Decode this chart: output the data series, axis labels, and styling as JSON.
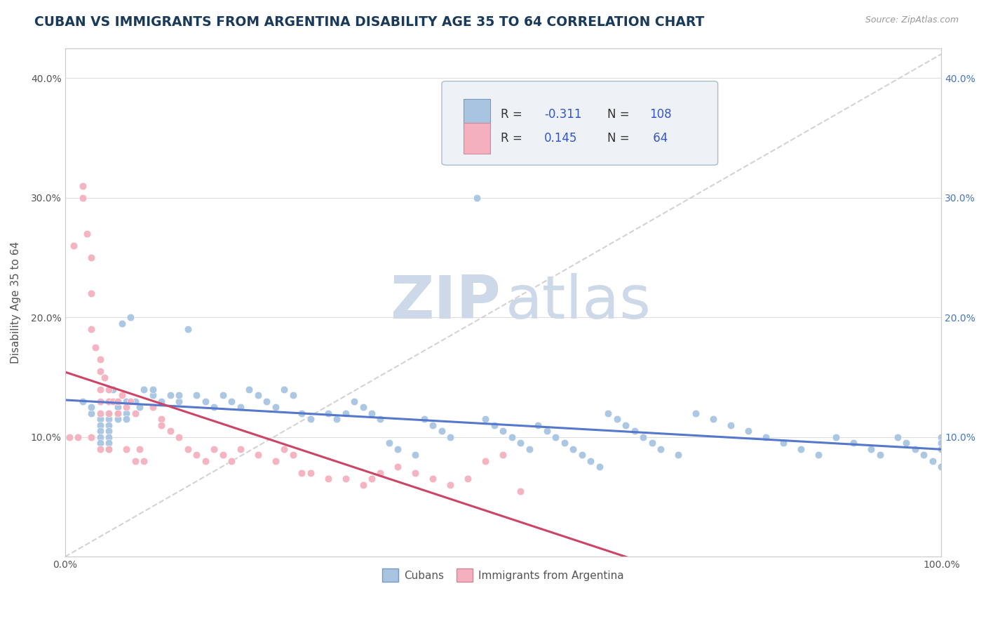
{
  "title": "CUBAN VS IMMIGRANTS FROM ARGENTINA DISABILITY AGE 35 TO 64 CORRELATION CHART",
  "source_text": "Source: ZipAtlas.com",
  "ylabel": "Disability Age 35 to 64",
  "xmin": 0.0,
  "xmax": 1.0,
  "ymin": 0.0,
  "ymax": 0.425,
  "cubans_R": -0.311,
  "cubans_N": 108,
  "argentina_R": 0.145,
  "argentina_N": 64,
  "cubans_dot_color": "#a8c4e0",
  "argentina_dot_color": "#f4b0be",
  "cubans_line_color": "#5577cc",
  "argentina_line_color": "#cc4466",
  "grid_color": "#dddddd",
  "diag_line_color": "#cccccc",
  "watermark_zip_color": "#cdd9e8",
  "watermark_atlas_color": "#cdd9e8",
  "title_color": "#1a3a5c",
  "title_fontsize": 13.5,
  "label_fontsize": 11,
  "tick_fontsize": 10,
  "legend_fontsize": 12,
  "r_n_color": "#3355cc",
  "label_color": "#555555",
  "right_tick_color": "#4477bb",
  "legend_bg": "#eef2f7",
  "legend_edge": "#aabbcc",
  "cubans_legend_patch": "#a8c4e0",
  "argentina_legend_patch": "#f4b0be",
  "cubans_patch_edge": "#7799bb",
  "argentina_patch_edge": "#cc8899",
  "ytick_vals": [
    0.1,
    0.2,
    0.3,
    0.4
  ],
  "ytick_labels": [
    "10.0%",
    "20.0%",
    "30.0%",
    "40.0%"
  ],
  "cubans_scatter_x": [
    0.02,
    0.03,
    0.03,
    0.04,
    0.04,
    0.04,
    0.04,
    0.04,
    0.05,
    0.05,
    0.05,
    0.05,
    0.05,
    0.05,
    0.05,
    0.05,
    0.055,
    0.06,
    0.06,
    0.06,
    0.06,
    0.065,
    0.07,
    0.07,
    0.07,
    0.075,
    0.08,
    0.085,
    0.09,
    0.1,
    0.1,
    0.11,
    0.12,
    0.13,
    0.13,
    0.14,
    0.15,
    0.16,
    0.17,
    0.18,
    0.19,
    0.2,
    0.21,
    0.22,
    0.23,
    0.24,
    0.25,
    0.26,
    0.27,
    0.28,
    0.3,
    0.31,
    0.32,
    0.33,
    0.34,
    0.35,
    0.36,
    0.37,
    0.38,
    0.4,
    0.41,
    0.42,
    0.43,
    0.44,
    0.47,
    0.48,
    0.49,
    0.5,
    0.51,
    0.52,
    0.53,
    0.54,
    0.55,
    0.56,
    0.57,
    0.58,
    0.59,
    0.6,
    0.61,
    0.62,
    0.63,
    0.64,
    0.65,
    0.66,
    0.67,
    0.68,
    0.7,
    0.72,
    0.74,
    0.76,
    0.78,
    0.8,
    0.82,
    0.84,
    0.86,
    0.88,
    0.9,
    0.92,
    0.93,
    0.95,
    0.96,
    0.97,
    0.98,
    0.99,
    1.0,
    1.0,
    1.0,
    1.0
  ],
  "cubans_scatter_y": [
    0.13,
    0.12,
    0.125,
    0.115,
    0.11,
    0.105,
    0.1,
    0.095,
    0.13,
    0.12,
    0.115,
    0.11,
    0.105,
    0.1,
    0.095,
    0.09,
    0.14,
    0.13,
    0.125,
    0.12,
    0.115,
    0.195,
    0.13,
    0.12,
    0.115,
    0.2,
    0.13,
    0.125,
    0.14,
    0.135,
    0.14,
    0.13,
    0.135,
    0.13,
    0.135,
    0.19,
    0.135,
    0.13,
    0.125,
    0.135,
    0.13,
    0.125,
    0.14,
    0.135,
    0.13,
    0.125,
    0.14,
    0.135,
    0.12,
    0.115,
    0.12,
    0.115,
    0.12,
    0.13,
    0.125,
    0.12,
    0.115,
    0.095,
    0.09,
    0.085,
    0.115,
    0.11,
    0.105,
    0.1,
    0.3,
    0.115,
    0.11,
    0.105,
    0.1,
    0.095,
    0.09,
    0.11,
    0.105,
    0.1,
    0.095,
    0.09,
    0.085,
    0.08,
    0.075,
    0.12,
    0.115,
    0.11,
    0.105,
    0.1,
    0.095,
    0.09,
    0.085,
    0.12,
    0.115,
    0.11,
    0.105,
    0.1,
    0.095,
    0.09,
    0.085,
    0.1,
    0.095,
    0.09,
    0.085,
    0.1,
    0.095,
    0.09,
    0.085,
    0.08,
    0.075,
    0.1,
    0.095,
    0.09
  ],
  "argentina_scatter_x": [
    0.005,
    0.01,
    0.015,
    0.02,
    0.02,
    0.025,
    0.03,
    0.03,
    0.03,
    0.03,
    0.035,
    0.04,
    0.04,
    0.04,
    0.04,
    0.04,
    0.04,
    0.045,
    0.05,
    0.05,
    0.05,
    0.05,
    0.055,
    0.06,
    0.06,
    0.065,
    0.07,
    0.07,
    0.075,
    0.08,
    0.08,
    0.085,
    0.09,
    0.1,
    0.11,
    0.11,
    0.12,
    0.13,
    0.14,
    0.15,
    0.16,
    0.17,
    0.18,
    0.19,
    0.2,
    0.22,
    0.24,
    0.25,
    0.26,
    0.27,
    0.28,
    0.3,
    0.32,
    0.34,
    0.35,
    0.36,
    0.38,
    0.4,
    0.42,
    0.44,
    0.46,
    0.48,
    0.5,
    0.52
  ],
  "argentina_scatter_y": [
    0.1,
    0.26,
    0.1,
    0.31,
    0.3,
    0.27,
    0.25,
    0.22,
    0.19,
    0.1,
    0.175,
    0.165,
    0.155,
    0.14,
    0.13,
    0.12,
    0.09,
    0.15,
    0.14,
    0.13,
    0.12,
    0.09,
    0.13,
    0.13,
    0.12,
    0.135,
    0.125,
    0.09,
    0.13,
    0.12,
    0.08,
    0.09,
    0.08,
    0.125,
    0.115,
    0.11,
    0.105,
    0.1,
    0.09,
    0.085,
    0.08,
    0.09,
    0.085,
    0.08,
    0.09,
    0.085,
    0.08,
    0.09,
    0.085,
    0.07,
    0.07,
    0.065,
    0.065,
    0.06,
    0.065,
    0.07,
    0.075,
    0.07,
    0.065,
    0.06,
    0.065,
    0.08,
    0.085,
    0.055
  ]
}
